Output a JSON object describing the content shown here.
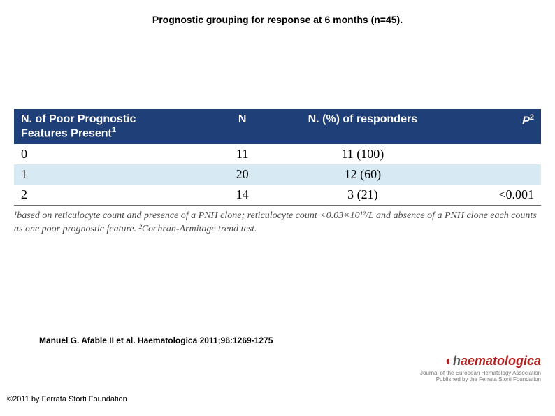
{
  "title": "Prognostic grouping for response at 6 months (n=45).",
  "table": {
    "header_bg": "#1f3f78",
    "header_color": "#ffffff",
    "alt_row_bg": "#d7e9f2",
    "columns": [
      "N. of Poor Prognostic Features Present¹",
      "N",
      "N. (%) of responders",
      "P²"
    ],
    "rows": [
      {
        "features": "0",
        "n": "11",
        "responders": "11 (100)",
        "p": ""
      },
      {
        "features": "1",
        "n": "20",
        "responders": "12 (60)",
        "p": ""
      },
      {
        "features": "2",
        "n": "14",
        "responders": "3 (21)",
        "p": "<0.001"
      }
    ]
  },
  "footnote": "¹based on reticulocyte count and presence of a PNH clone; reticulocyte count <0.03×10¹²/L and absence of a PNH clone each counts as one poor prognostic feature. ²Cochran-Armitage trend test.",
  "citation": "Manuel G. Afable II et al. Haematologica 2011;96:1269-1275",
  "copyright": "©2011 by Ferrata Storti Foundation",
  "logo": {
    "brand_prefix": "h",
    "brand_main": "aematologica",
    "sub": "Journal of the European Hematology Association\nPublished by the Ferrata Storti Foundation"
  }
}
